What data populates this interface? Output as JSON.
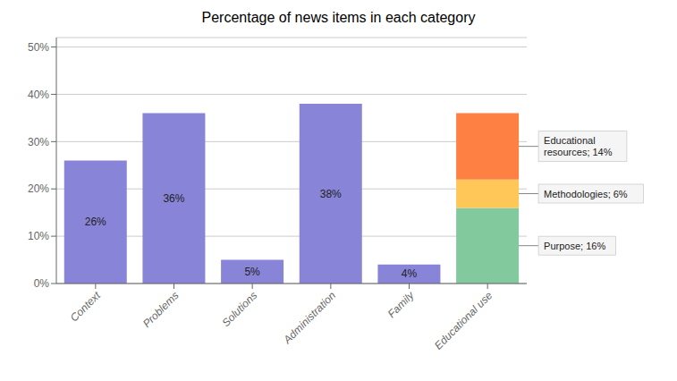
{
  "chart_data": {
    "type": "bar",
    "title": "Percentage of news items in each category",
    "categories": [
      "Context",
      "Problems",
      "Solutions",
      "Administration",
      "Family",
      "Educational use"
    ],
    "stacked": true,
    "grid": true,
    "data_labels": true,
    "ylim": [
      0,
      52
    ],
    "yticks": [
      {
        "value": 0,
        "label": "0%"
      },
      {
        "value": 10,
        "label": "10%"
      },
      {
        "value": 20,
        "label": "20%"
      },
      {
        "value": 30,
        "label": "30%"
      },
      {
        "value": 40,
        "label": "40%"
      },
      {
        "value": 50,
        "label": "50%"
      }
    ],
    "series": [
      {
        "color": "#8884d8",
        "values": [
          26,
          36,
          5,
          38,
          4,
          null
        ],
        "value_labels": [
          "26%",
          "36%",
          "5%",
          "38%",
          "4%",
          null
        ]
      },
      {
        "color": "#82ca9d",
        "values": [
          null,
          null,
          null,
          null,
          null,
          16
        ]
      },
      {
        "color": "#ffc658",
        "values": [
          null,
          null,
          null,
          null,
          null,
          6
        ]
      },
      {
        "color": "#ff8042",
        "values": [
          null,
          null,
          null,
          null,
          null,
          14
        ]
      }
    ],
    "annotations": [
      "Purpose; 16%",
      "Methodologies; 6%",
      "Educational\nresources; 14%"
    ]
  }
}
